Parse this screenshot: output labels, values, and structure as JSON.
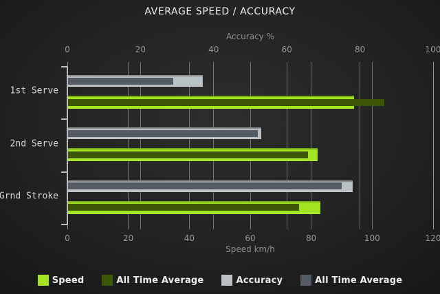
{
  "title": "AVERAGE SPEED / ACCURACY",
  "colors": {
    "background_center": "#2d2d2d",
    "background_edge": "#121212",
    "speed": "#a4e522",
    "speed_all_time_average": "#3d5606",
    "accuracy": "#bac1c5",
    "accuracy_all_time_average": "#555b62",
    "gridline": "#b2b2b2",
    "axis_text": "#979797",
    "title_text": "#f1f1f1",
    "category_text": "#d6d6d6",
    "legend_text": "#ececec"
  },
  "chart_data": {
    "type": "bar",
    "orientation": "horizontal",
    "title": "AVERAGE SPEED / ACCURACY",
    "categories": [
      "1st Serve",
      "2nd Serve",
      "Grnd Stroke"
    ],
    "top_axis": {
      "label": "Accuracy %",
      "min": 0,
      "max": 100,
      "ticks": [
        0,
        20,
        40,
        60,
        80,
        100
      ]
    },
    "bottom_axis": {
      "label": "Speed km/h",
      "min": 0,
      "max": 120,
      "ticks": [
        0,
        20,
        40,
        60,
        80,
        100,
        120
      ]
    },
    "grid": true,
    "legend_position": "bottom",
    "series": [
      {
        "name": "Speed",
        "axis": "bottom",
        "color": "#a4e522",
        "values": [
          94,
          82,
          83
        ]
      },
      {
        "name": "All Time Average",
        "axis": "bottom",
        "color": "#3d5606",
        "values": [
          104,
          79,
          76
        ]
      },
      {
        "name": "Accuracy",
        "axis": "top",
        "color": "#bac1c5",
        "values": [
          37,
          53,
          78
        ]
      },
      {
        "name": "All Time Average",
        "axis": "top",
        "color": "#555b62",
        "values": [
          29,
          52,
          75
        ]
      }
    ],
    "legend": [
      {
        "label": "Speed",
        "color": "#a4e522"
      },
      {
        "label": "All Time Average",
        "color": "#3d5606"
      },
      {
        "label": "Accuracy",
        "color": "#bac1c5"
      },
      {
        "label": "All Time Average",
        "color": "#555b62"
      }
    ]
  }
}
